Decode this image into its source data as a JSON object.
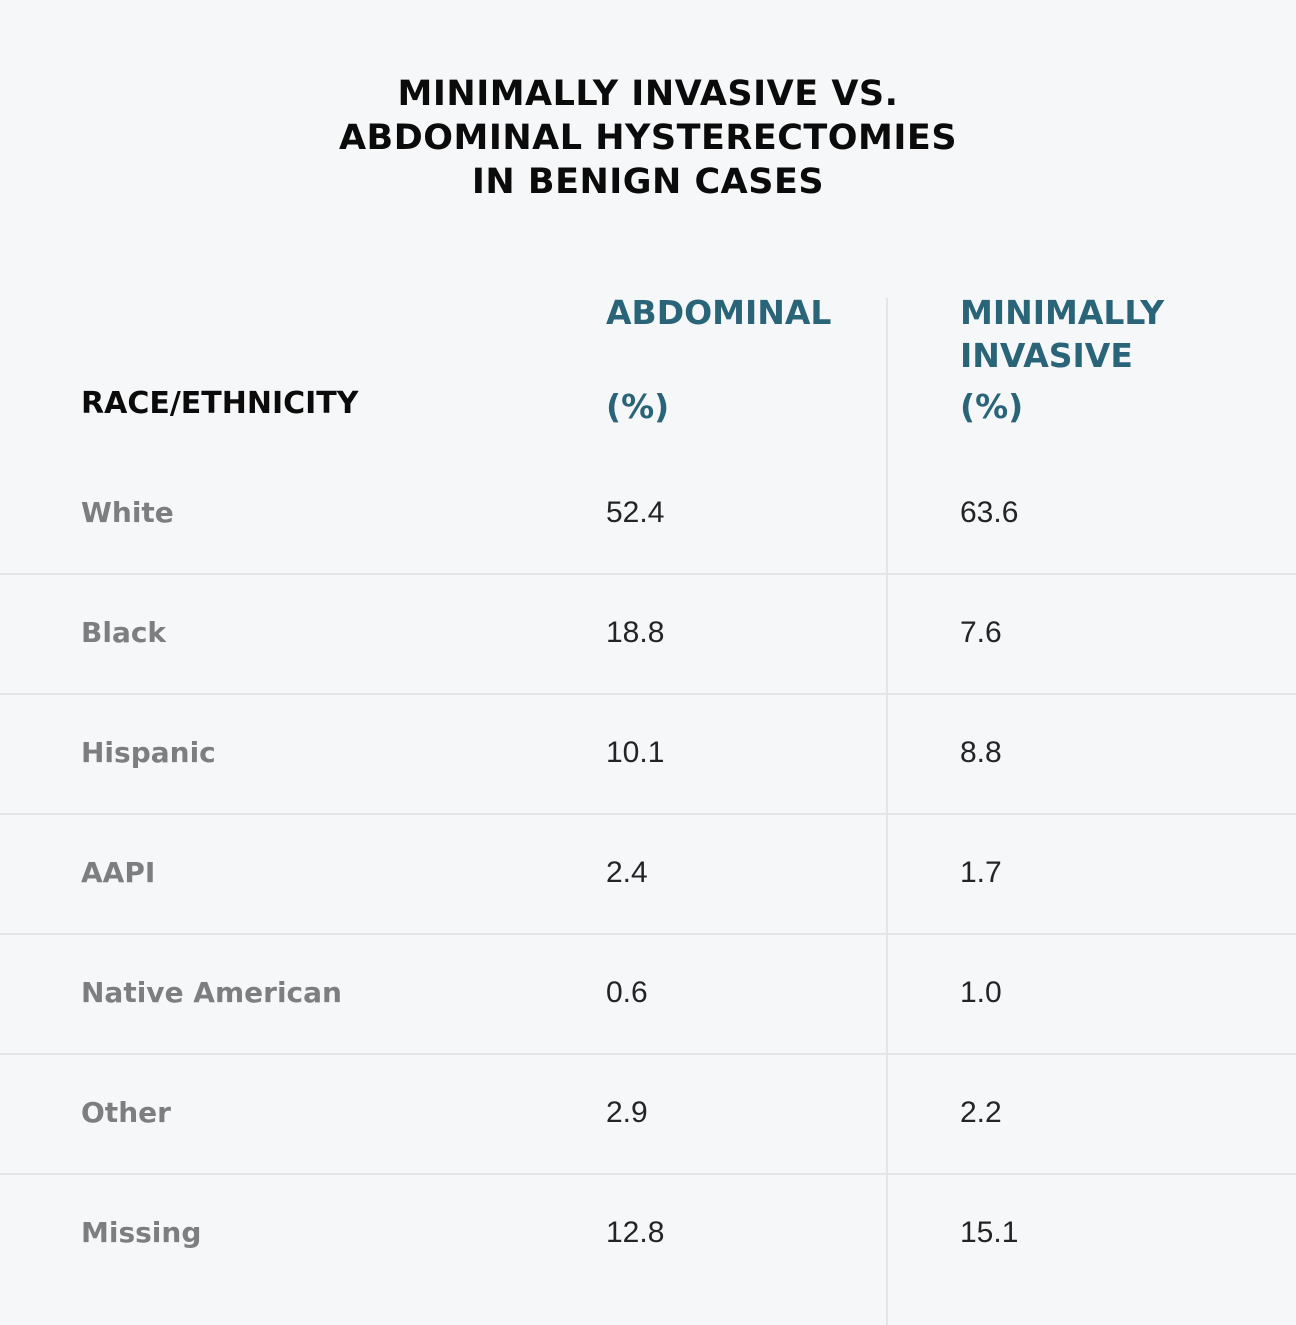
{
  "chart_data": {
    "type": "table",
    "title_lines": [
      "MINIMALLY INVASIVE VS.",
      "ABDOMINAL HYSTERECTOMIES",
      "IN BENIGN CASES"
    ],
    "columns": {
      "race": "RACE/ETHNICITY",
      "abdominal": {
        "line1": "ABDOMINAL",
        "line2": "(%)"
      },
      "minimally_invasive": {
        "line1": "MINIMALLY",
        "line2": "INVASIVE",
        "line3": "(%)"
      }
    },
    "rows": [
      {
        "label": "White",
        "abdominal": "52.4",
        "minimally_invasive": "63.6"
      },
      {
        "label": "Black",
        "abdominal": "18.8",
        "minimally_invasive": "7.6"
      },
      {
        "label": "Hispanic",
        "abdominal": "10.1",
        "minimally_invasive": "8.8"
      },
      {
        "label": "AAPI",
        "abdominal": "2.4",
        "minimally_invasive": "1.7"
      },
      {
        "label": "Native American",
        "abdominal": "0.6",
        "minimally_invasive": "1.0"
      },
      {
        "label": "Other",
        "abdominal": "2.9",
        "minimally_invasive": "2.2"
      },
      {
        "label": "Missing",
        "abdominal": "12.8",
        "minimally_invasive": "15.1"
      }
    ]
  },
  "colors": {
    "background": "#f6f7f8",
    "title": "#0b0b0b",
    "header_accent": "#2a6478",
    "row_label": "#7c7e80",
    "value": "#222426",
    "rule": "#e3e6e9"
  }
}
